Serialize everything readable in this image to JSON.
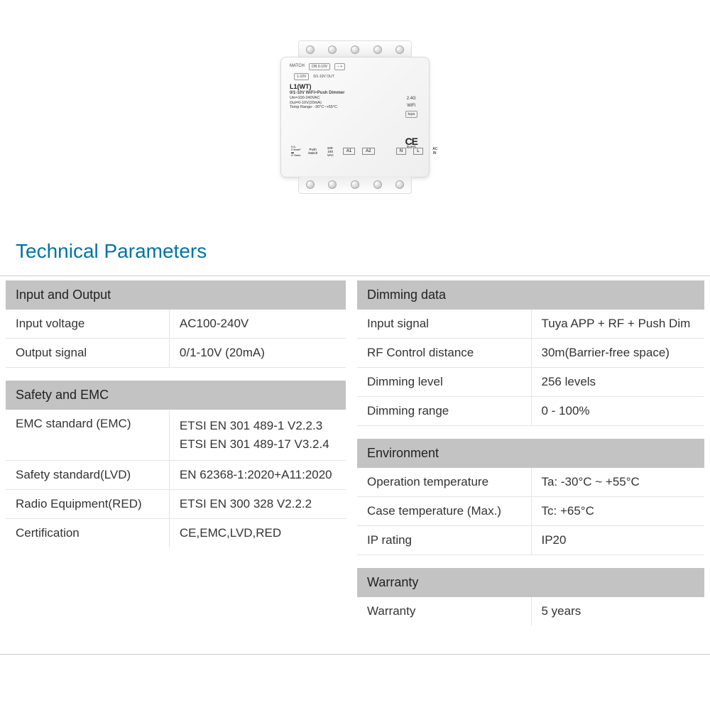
{
  "heading": "Technical Parameters",
  "colors": {
    "heading": "#0073a8",
    "section_header_bg": "#c3c3c3",
    "border": "#e4e4e4",
    "text": "#333333",
    "background": "#ffffff"
  },
  "product": {
    "model": "L1(WT)",
    "subtitle": "0/1-10V WiFi+Push Dimmer",
    "spec_uin": "Uin=100-240VAC",
    "spec_out": "Out=0-10V(20mA)",
    "spec_temp": "Temp Range: -30°C~+55°C",
    "match": "MATCH",
    "sw_on": "ON",
    "sw_0_10": "0-10V",
    "sw_1_10": "1-10V",
    "out_label": "0/1-10V OUT",
    "wifi_24g": "2.4G",
    "wifi": "WiFi",
    "tuya": "tuya",
    "a1": "A1",
    "a2": "A2",
    "n": "N",
    "l": "L",
    "acin": "AC IN",
    "push_switch": "Push Switch",
    "vac_100_240": "100-240 VAC",
    "ce": "CE",
    "rohs": "RoHS",
    "wire_spec": "0.5-2.5mm²",
    "wire_len": "4~5mm"
  },
  "left_sections": [
    {
      "title": "Input and Output",
      "rows": [
        {
          "label": "Input voltage",
          "value": "AC100-240V"
        },
        {
          "label": "Output signal",
          "value": "0/1-10V (20mA)"
        }
      ]
    },
    {
      "title": "Safety and EMC",
      "rows": [
        {
          "label": "EMC standard (EMC)",
          "value": "ETSI EN 301 489-1 V2.2.3\nETSI EN 301 489-17 V3.2.4",
          "multi": true
        },
        {
          "label": "Safety standard(LVD)",
          "value": "EN 62368-1:2020+A11:2020"
        },
        {
          "label": "Radio Equipment(RED)",
          "value": "ETSI EN 300 328 V2.2.2"
        },
        {
          "label": "Certification",
          "value": "CE,EMC,LVD,RED"
        }
      ]
    }
  ],
  "right_sections": [
    {
      "title": "Dimming data",
      "rows": [
        {
          "label": "Input signal",
          "value": "Tuya APP + RF + Push Dim"
        },
        {
          "label": "RF Control distance",
          "value": "30m(Barrier-free space)"
        },
        {
          "label": "Dimming level",
          "value": "256 levels"
        },
        {
          "label": "Dimming range",
          "value": "0 - 100%"
        }
      ]
    },
    {
      "title": "Environment",
      "rows": [
        {
          "label": "Operation temperature",
          "value": "Ta: -30°C ~ +55°C"
        },
        {
          "label": "Case temperature (Max.)",
          "value": "Tc: +65°C"
        },
        {
          "label": "IP rating",
          "value": "IP20"
        }
      ]
    },
    {
      "title": "Warranty",
      "rows": [
        {
          "label": "Warranty",
          "value": "5 years"
        }
      ]
    }
  ]
}
